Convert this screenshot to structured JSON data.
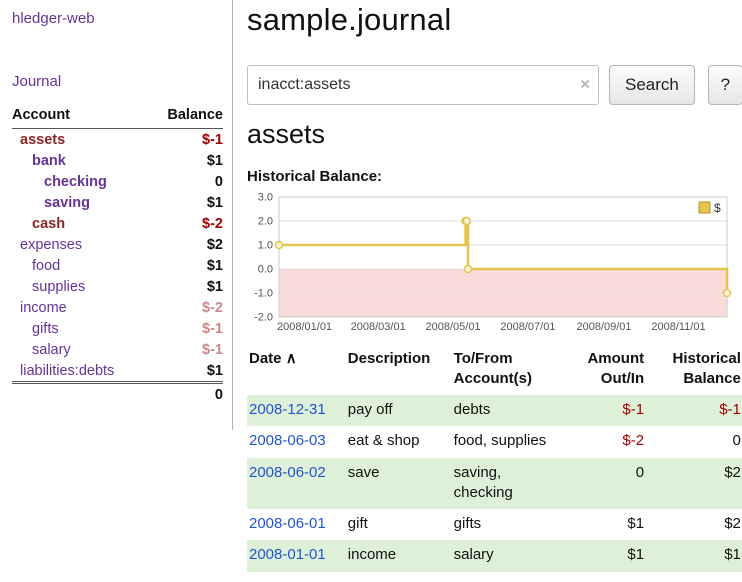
{
  "app": {
    "title": "hledger-web"
  },
  "sidebar": {
    "journal_link": "Journal",
    "accounts": {
      "header_account": "Account",
      "header_balance": "Balance",
      "rows": [
        {
          "name": "assets",
          "balance": "$-1"
        },
        {
          "name": "bank",
          "balance": "$1"
        },
        {
          "name": "checking",
          "balance": "0"
        },
        {
          "name": "saving",
          "balance": "$1"
        },
        {
          "name": "cash",
          "balance": "$-2"
        },
        {
          "name": "expenses",
          "balance": "$2"
        },
        {
          "name": "food",
          "balance": "$1"
        },
        {
          "name": "supplies",
          "balance": "$1"
        },
        {
          "name": "income",
          "balance": "$-2"
        },
        {
          "name": "gifts",
          "balance": "$-1"
        },
        {
          "name": "salary",
          "balance": "$-1"
        },
        {
          "name": "liabilities:debts",
          "balance": "$1"
        }
      ],
      "total": "0"
    }
  },
  "main": {
    "title": "sample.journal",
    "search": {
      "value": "inacct:assets",
      "clear_label": "×",
      "button_label": "Search",
      "help_label": "?"
    },
    "account_heading": "assets",
    "chart_title": "Historical Balance:"
  },
  "chart_data": {
    "type": "line",
    "step": true,
    "title": "Historical Balance",
    "xrange": [
      "2008-01-01",
      "2008-12-31"
    ],
    "ylim": [
      -2.0,
      3.0
    ],
    "yticks": [
      "3.0",
      "2.0",
      "1.0",
      "0.0",
      "-1.0",
      "-2.0"
    ],
    "xticks": [
      "2008/01/01",
      "2008/03/01",
      "2008/05/01",
      "2008/07/01",
      "2008/09/01",
      "2008/11/01"
    ],
    "series": [
      {
        "name": "$",
        "color": "#e3c44f",
        "points": [
          {
            "x": "2008-01-01",
            "y": 1
          },
          {
            "x": "2008-06-01",
            "y": 2
          },
          {
            "x": "2008-06-02",
            "y": 2
          },
          {
            "x": "2008-06-03",
            "y": 0
          },
          {
            "x": "2008-12-31",
            "y": -1
          }
        ]
      }
    ],
    "legend": {
      "label": "$",
      "position": "top-right"
    },
    "negative_region_color": "#fbdada",
    "grid": "horizontal"
  },
  "register": {
    "headers": {
      "date": "Date",
      "sort_indicator": "∧",
      "description": "Description",
      "tofrom": "To/From\nAccount(s)",
      "amount": "Amount\nOut/In",
      "historical": "Historical\nBalance"
    },
    "rows": [
      {
        "date": "2008-12-31",
        "description": "pay off",
        "accounts": "debts",
        "amount": "$-1",
        "balance": "$-1"
      },
      {
        "date": "2008-06-03",
        "description": "eat & shop",
        "accounts": "food, supplies",
        "amount": "$-2",
        "balance": "0"
      },
      {
        "date": "2008-06-02",
        "description": "save",
        "accounts": "saving,\nchecking",
        "amount": "0",
        "balance": "$2"
      },
      {
        "date": "2008-06-01",
        "description": "gift",
        "accounts": "gifts",
        "amount": "$1",
        "balance": "$2"
      },
      {
        "date": "2008-01-01",
        "description": "income",
        "accounts": "salary",
        "amount": "$1",
        "balance": "$1"
      }
    ]
  }
}
